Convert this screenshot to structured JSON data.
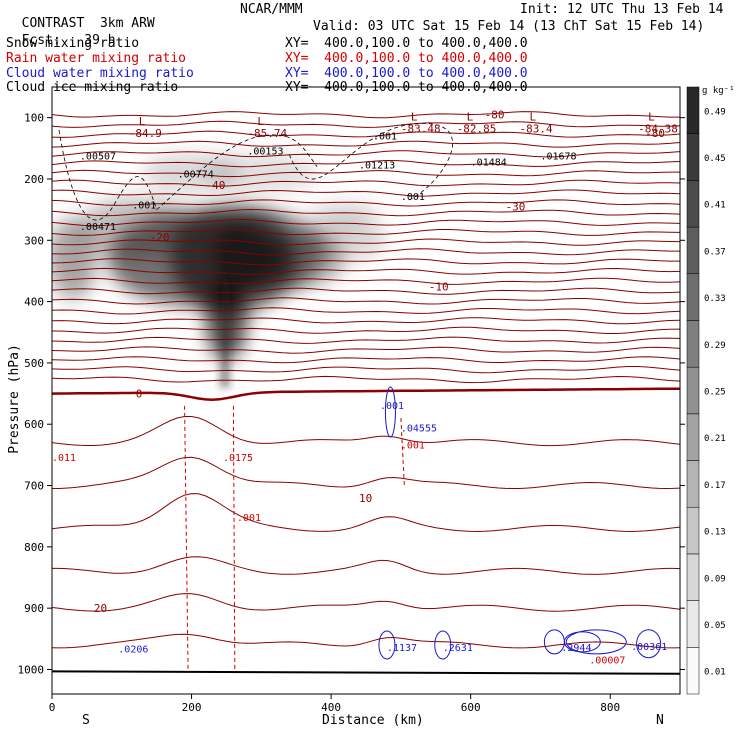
{
  "header": {
    "model": "CONTRAST",
    "model_sub": "3km ARW",
    "forecast": "Fcst:",
    "forecast_hours": "39 h",
    "center": "NCAR/MMM",
    "init": "Init: 12 UTC Thu 13 Feb 14",
    "valid": "Valid: 03 UTC Sat 15 Feb 14 (13 ChT Sat 15 Feb 14)"
  },
  "fields": [
    {
      "label": "Snow mixing ratio",
      "xy": "XY=  400.0,100.0 to 400.0,400.0",
      "color": "#000000"
    },
    {
      "label": "Rain water mixing ratio",
      "xy": "XY=  400.0,100.0 to 400.0,400.0",
      "color": "#d40000"
    },
    {
      "label": "Cloud water mixing ratio",
      "xy": "XY=  400.0,100.0 to 400.0,400.0",
      "color": "#1a1acc"
    },
    {
      "label": "Cloud ice mixing ratio",
      "xy": "XY=  400.0,100.0 to 400.0,400.0",
      "color": "#000000"
    }
  ],
  "chart_data": {
    "type": "heatmap",
    "title": "",
    "xlabel": "Distance (km)",
    "ylabel": "Pressure (hPa)",
    "xlim": [
      0,
      900
    ],
    "ylim": [
      1040,
      50
    ],
    "x_ticks": [
      0,
      200,
      400,
      600,
      800
    ],
    "y_ticks": [
      100,
      200,
      300,
      400,
      500,
      600,
      700,
      800,
      900,
      1000
    ],
    "x_ends": {
      "left": "S",
      "right": "N"
    },
    "colorbar": {
      "unit": "g kg⁻¹",
      "levels": [
        "0.01",
        "0.05",
        "0.09",
        "0.13",
        "0.17",
        "0.21",
        "0.25",
        "0.29",
        "0.33",
        "0.37",
        "0.41",
        "0.45",
        "0.49"
      ]
    },
    "temperature_contours": [
      {
        "temp": -80,
        "p": 95,
        "label": "-80"
      },
      {
        "temp": -80,
        "p": 125,
        "label": "-80"
      },
      {
        "temp": -40,
        "p": 210,
        "label": "-40"
      },
      {
        "temp": -30,
        "p": 245,
        "label": "-30"
      },
      {
        "temp": -20,
        "p": 295,
        "label": "-20"
      },
      {
        "temp": -10,
        "p": 375,
        "label": "-10"
      },
      {
        "temp": 0,
        "p": 550,
        "label": "0"
      },
      {
        "temp": 10,
        "p": 720,
        "label": "10"
      },
      {
        "temp": 20,
        "p": 900,
        "label": "20"
      }
    ],
    "pressure_labels": [
      {
        "x": 130,
        "p": 125,
        "text": "-84.9"
      },
      {
        "x": 300,
        "p": 125,
        "text": "-85.74"
      },
      {
        "x": 520,
        "p": 118,
        "text": "-83.48"
      },
      {
        "x": 600,
        "p": 118,
        "text": "-82.85"
      },
      {
        "x": 690,
        "p": 118,
        "text": "-83.4"
      },
      {
        "x": 860,
        "p": 118,
        "text": "-84.38"
      }
    ],
    "snow_maxima": [
      {
        "x": 40,
        "p": 168,
        "text": ".00507"
      },
      {
        "x": 280,
        "p": 160,
        "text": ".00153"
      },
      {
        "x": 180,
        "p": 198,
        "text": ".00774"
      },
      {
        "x": 440,
        "p": 183,
        "text": ".01213"
      },
      {
        "x": 600,
        "p": 178,
        "text": ".01484"
      },
      {
        "x": 700,
        "p": 168,
        "text": ".01678"
      },
      {
        "x": 40,
        "p": 283,
        "text": ".00471"
      },
      {
        "x": 460,
        "p": 136,
        "text": ".001"
      },
      {
        "x": 500,
        "p": 234,
        "text": ".001"
      },
      {
        "x": 115,
        "p": 248,
        "text": ".001"
      }
    ],
    "rain_maxima": [
      {
        "x": 245,
        "p": 660,
        "text": ".0175"
      },
      {
        "x": 0,
        "p": 660,
        "text": ".011"
      },
      {
        "x": 265,
        "p": 758,
        "text": ".001"
      },
      {
        "x": 500,
        "p": 640,
        "text": ".001"
      },
      {
        "x": 770,
        "p": 990,
        "text": ".00007"
      }
    ],
    "cloud_water_maxima": [
      {
        "x": 95,
        "p": 972,
        "text": ".0206"
      },
      {
        "x": 480,
        "p": 970,
        "text": ".1137"
      },
      {
        "x": 560,
        "p": 970,
        "text": ".2631"
      },
      {
        "x": 730,
        "p": 970,
        "text": ".2944"
      },
      {
        "x": 830,
        "p": 968,
        "text": ".00361"
      },
      {
        "x": 470,
        "p": 575,
        "text": ".001"
      },
      {
        "x": 500,
        "p": 612,
        "text": ".04555"
      }
    ]
  }
}
